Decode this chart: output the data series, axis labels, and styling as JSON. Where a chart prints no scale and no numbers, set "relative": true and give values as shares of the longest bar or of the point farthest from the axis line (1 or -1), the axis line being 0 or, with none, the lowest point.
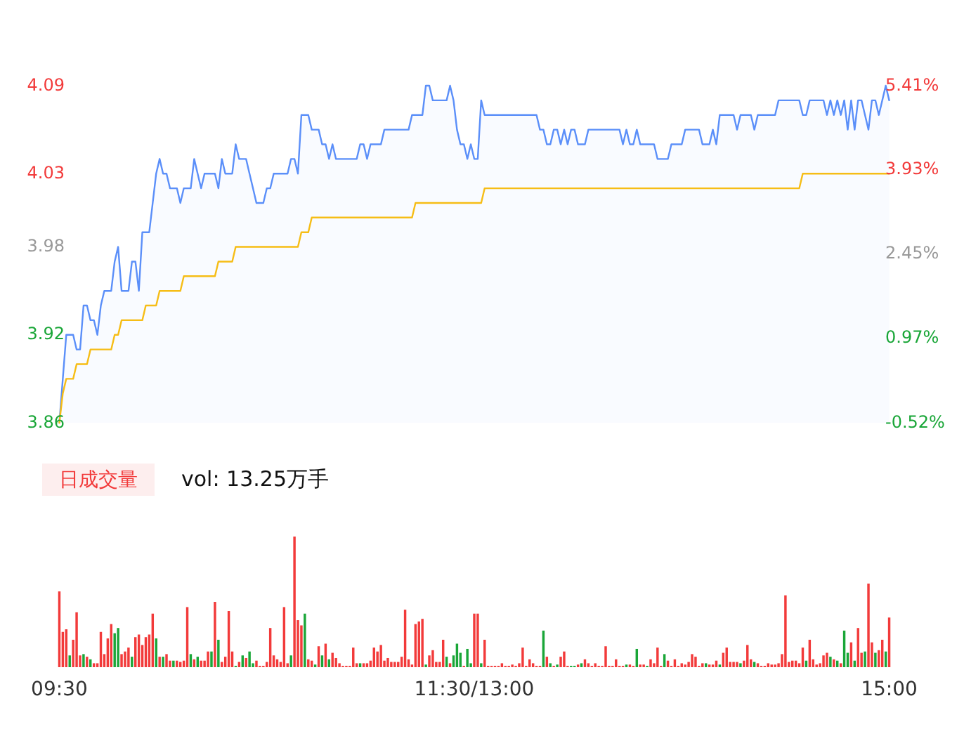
{
  "chart_data": [
    {
      "type": "area",
      "categories": [
        null,
        null,
        null,
        null,
        null,
        null,
        null,
        null,
        null,
        null,
        null,
        null,
        null,
        null,
        null,
        null,
        null,
        null,
        null,
        null,
        null,
        null,
        null,
        null,
        null,
        null,
        null,
        null,
        null,
        null,
        null,
        null,
        null,
        null,
        null,
        null,
        null,
        null,
        null,
        null,
        null,
        null,
        null,
        null,
        null,
        null,
        null,
        null,
        null,
        null,
        null,
        null,
        null,
        null,
        null,
        null,
        null,
        null,
        null,
        null,
        null,
        null,
        null,
        null,
        null,
        null,
        null,
        null,
        null,
        null,
        null,
        null,
        null,
        null,
        null,
        null,
        null,
        null,
        null,
        null,
        null,
        null,
        null,
        null,
        null,
        null,
        null,
        null,
        null,
        null,
        null,
        null,
        null,
        null,
        null,
        null,
        null,
        null,
        null,
        null,
        null,
        null,
        null,
        null,
        null,
        null,
        null,
        null,
        null,
        null,
        null,
        null,
        null,
        null,
        null,
        null,
        null,
        null,
        null,
        null,
        null,
        null,
        null,
        null,
        null,
        null,
        null,
        null,
        null,
        null,
        null,
        null,
        null,
        null,
        null,
        null,
        null,
        null,
        null,
        null,
        null,
        null,
        null,
        null,
        null,
        null,
        null,
        null,
        null,
        null,
        null,
        null,
        null,
        null,
        null,
        null,
        null,
        null,
        null,
        null,
        null,
        null,
        null,
        null,
        null,
        null,
        null,
        null,
        null,
        null,
        null,
        null,
        null,
        null,
        null,
        null,
        null,
        null,
        null,
        null,
        null,
        null,
        null,
        null,
        null,
        null,
        null,
        null,
        null,
        null,
        null,
        null,
        null,
        null,
        null,
        null,
        null,
        null,
        null,
        null,
        null,
        null,
        null,
        null,
        null,
        null,
        null,
        null,
        null,
        null,
        null,
        null,
        null,
        null,
        null,
        null,
        null,
        null,
        null,
        null,
        null,
        null,
        null,
        null,
        null,
        null,
        null,
        null,
        null,
        null,
        null,
        null,
        null,
        null,
        null,
        null,
        null,
        null,
        null,
        null,
        null
      ],
      "ylim": [
        3.86,
        4.09
      ],
      "yticks": [
        3.86,
        3.92,
        3.98,
        4.03,
        4.09
      ],
      "y2lim": [
        -0.52,
        5.41
      ],
      "y2ticks": [
        {
          "value": -0.52,
          "label": "-0.52%"
        },
        {
          "value": 0.97,
          "label": "0.97%"
        },
        {
          "value": 2.45,
          "label": "2.45%"
        },
        {
          "value": 3.93,
          "label": "3.93%"
        },
        {
          "value": 5.41,
          "label": "5.41%"
        }
      ],
      "tick_labels": "y",
      "series": [
        {
          "type": "area",
          "color": "#5b8ff9",
          "values": [
            3.86,
            3.89,
            3.92,
            3.92,
            3.92,
            3.91,
            3.91,
            3.94,
            3.94,
            3.93,
            3.93,
            3.92,
            3.94,
            3.95,
            3.95,
            3.95,
            3.97,
            3.98,
            3.95,
            3.95,
            3.95,
            3.97,
            3.97,
            3.95,
            3.99,
            3.99,
            3.99,
            4.01,
            4.03,
            4.04,
            4.03,
            4.03,
            4.02,
            4.02,
            4.02,
            4.01,
            4.02,
            4.02,
            4.02,
            4.04,
            4.03,
            4.02,
            4.03,
            4.03,
            4.03,
            4.03,
            4.02,
            4.04,
            4.03,
            4.03,
            4.03,
            4.05,
            4.04,
            4.04,
            4.04,
            4.03,
            4.02,
            4.01,
            4.01,
            4.01,
            4.02,
            4.02,
            4.03,
            4.03,
            4.03,
            4.03,
            4.03,
            4.04,
            4.04,
            4.03,
            4.07,
            4.07,
            4.07,
            4.06,
            4.06,
            4.06,
            4.05,
            4.05,
            4.04,
            4.05,
            4.04,
            4.04,
            4.04,
            4.04,
            4.04,
            4.04,
            4.04,
            4.05,
            4.05,
            4.04,
            4.05,
            4.05,
            4.05,
            4.05,
            4.06,
            4.06,
            4.06,
            4.06,
            4.06,
            4.06,
            4.06,
            4.06,
            4.07,
            4.07,
            4.07,
            4.07,
            4.09,
            4.09,
            4.08,
            4.08,
            4.08,
            4.08,
            4.08,
            4.09,
            4.08,
            4.06,
            4.05,
            4.05,
            4.04,
            4.05,
            4.04,
            4.04,
            4.08,
            4.07,
            4.07,
            4.07,
            4.07,
            4.07,
            4.07,
            4.07,
            4.07,
            4.07,
            4.07,
            4.07,
            4.07,
            4.07,
            4.07,
            4.07,
            4.07,
            4.06,
            4.06,
            4.05,
            4.05,
            4.06,
            4.06,
            4.05,
            4.06,
            4.05,
            4.06,
            4.06,
            4.05,
            4.05,
            4.05,
            4.06,
            4.06,
            4.06,
            4.06,
            4.06,
            4.06,
            4.06,
            4.06,
            4.06,
            4.06,
            4.05,
            4.06,
            4.05,
            4.05,
            4.06,
            4.05,
            4.05,
            4.05,
            4.05,
            4.05,
            4.04,
            4.04,
            4.04,
            4.04,
            4.05,
            4.05,
            4.05,
            4.05,
            4.06,
            4.06,
            4.06,
            4.06,
            4.06,
            4.05,
            4.05,
            4.05,
            4.06,
            4.05,
            4.07,
            4.07,
            4.07,
            4.07,
            4.07,
            4.06,
            4.07,
            4.07,
            4.07,
            4.07,
            4.06,
            4.07,
            4.07,
            4.07,
            4.07,
            4.07,
            4.07,
            4.08,
            4.08,
            4.08,
            4.08,
            4.08,
            4.08,
            4.08,
            4.07,
            4.07,
            4.08,
            4.08,
            4.08,
            4.08,
            4.08,
            4.07,
            4.08,
            4.07,
            4.08,
            4.07,
            4.08,
            4.06,
            4.08,
            4.06,
            4.08,
            4.08,
            4.07,
            4.06,
            4.08,
            4.08,
            4.07,
            4.08,
            4.09,
            4.08
          ]
        },
        {
          "type": "line",
          "color": "#f6bd16",
          "values": [
            3.86,
            3.88,
            3.89,
            3.89,
            3.89,
            3.9,
            3.9,
            3.9,
            3.9,
            3.91,
            3.91,
            3.91,
            3.91,
            3.91,
            3.91,
            3.91,
            3.92,
            3.92,
            3.93,
            3.93,
            3.93,
            3.93,
            3.93,
            3.93,
            3.93,
            3.94,
            3.94,
            3.94,
            3.94,
            3.95,
            3.95,
            3.95,
            3.95,
            3.95,
            3.95,
            3.95,
            3.96,
            3.96,
            3.96,
            3.96,
            3.96,
            3.96,
            3.96,
            3.96,
            3.96,
            3.96,
            3.97,
            3.97,
            3.97,
            3.97,
            3.97,
            3.98,
            3.98,
            3.98,
            3.98,
            3.98,
            3.98,
            3.98,
            3.98,
            3.98,
            3.98,
            3.98,
            3.98,
            3.98,
            3.98,
            3.98,
            3.98,
            3.98,
            3.98,
            3.98,
            3.99,
            3.99,
            3.99,
            4.0,
            4.0,
            4.0,
            4.0,
            4.0,
            4.0,
            4.0,
            4.0,
            4.0,
            4.0,
            4.0,
            4.0,
            4.0,
            4.0,
            4.0,
            4.0,
            4.0,
            4.0,
            4.0,
            4.0,
            4.0,
            4.0,
            4.0,
            4.0,
            4.0,
            4.0,
            4.0,
            4.0,
            4.0,
            4.0,
            4.01,
            4.01,
            4.01,
            4.01,
            4.01,
            4.01,
            4.01,
            4.01,
            4.01,
            4.01,
            4.01,
            4.01,
            4.01,
            4.01,
            4.01,
            4.01,
            4.01,
            4.01,
            4.01,
            4.01,
            4.02,
            4.02,
            4.02,
            4.02,
            4.02,
            4.02,
            4.02,
            4.02,
            4.02,
            4.02,
            4.02,
            4.02,
            4.02,
            4.02,
            4.02,
            4.02,
            4.02,
            4.02,
            4.02,
            4.02,
            4.02,
            4.02,
            4.02,
            4.02,
            4.02,
            4.02,
            4.02,
            4.02,
            4.02,
            4.02,
            4.02,
            4.02,
            4.02,
            4.02,
            4.02,
            4.02,
            4.02,
            4.02,
            4.02,
            4.02,
            4.02,
            4.02,
            4.02,
            4.02,
            4.02,
            4.02,
            4.02,
            4.02,
            4.02,
            4.02,
            4.02,
            4.02,
            4.02,
            4.02,
            4.02,
            4.02,
            4.02,
            4.02,
            4.02,
            4.02,
            4.02,
            4.02,
            4.02,
            4.02,
            4.02,
            4.02,
            4.02,
            4.02,
            4.02,
            4.02,
            4.02,
            4.02,
            4.02,
            4.02,
            4.02,
            4.02,
            4.02,
            4.02,
            4.02,
            4.02,
            4.02,
            4.02,
            4.02,
            4.02,
            4.02,
            4.02,
            4.02,
            4.02,
            4.02,
            4.02,
            4.02,
            4.02,
            4.03,
            4.03,
            4.03,
            4.03,
            4.03,
            4.03,
            4.03,
            4.03,
            4.03,
            4.03,
            4.03,
            4.03,
            4.03,
            4.03,
            4.03,
            4.03,
            4.03,
            4.03,
            4.03,
            4.03,
            4.03,
            4.03,
            4.03,
            4.03,
            4.03,
            4.03
          ]
        }
      ]
    },
    {
      "type": "bar",
      "title": "日成交量",
      "subtitle": "vol: 13.25万手",
      "relative": true,
      "tick_labels": "x",
      "categories": [
        "09:30",
        null,
        null,
        null,
        null,
        null,
        null,
        null,
        null,
        null,
        null,
        null,
        null,
        null,
        null,
        null,
        null,
        null,
        null,
        null,
        null,
        null,
        null,
        null,
        null,
        null,
        null,
        null,
        null,
        null,
        null,
        null,
        null,
        null,
        null,
        null,
        null,
        null,
        null,
        null,
        null,
        null,
        null,
        null,
        null,
        null,
        null,
        null,
        null,
        null,
        null,
        null,
        null,
        null,
        null,
        null,
        null,
        null,
        null,
        null,
        null,
        null,
        null,
        null,
        null,
        null,
        null,
        null,
        null,
        null,
        null,
        null,
        null,
        null,
        null,
        null,
        null,
        null,
        null,
        null,
        null,
        null,
        null,
        null,
        null,
        null,
        null,
        null,
        null,
        null,
        null,
        null,
        null,
        null,
        null,
        null,
        null,
        null,
        null,
        null,
        null,
        null,
        null,
        null,
        null,
        null,
        null,
        null,
        null,
        null,
        null,
        null,
        null,
        null,
        null,
        null,
        null,
        null,
        null,
        null,
        "11:30/13:00",
        null,
        null,
        null,
        null,
        null,
        null,
        null,
        null,
        null,
        null,
        null,
        null,
        null,
        null,
        null,
        null,
        null,
        null,
        null,
        null,
        null,
        null,
        null,
        null,
        null,
        null,
        null,
        null,
        null,
        null,
        null,
        null,
        null,
        null,
        null,
        null,
        null,
        null,
        null,
        null,
        null,
        null,
        null,
        null,
        null,
        null,
        null,
        null,
        null,
        null,
        null,
        null,
        null,
        null,
        null,
        null,
        null,
        null,
        null,
        null,
        null,
        null,
        null,
        null,
        null,
        null,
        null,
        null,
        null,
        null,
        null,
        null,
        null,
        null,
        null,
        null,
        null,
        null,
        null,
        null,
        null,
        null,
        null,
        null,
        null,
        null,
        null,
        null,
        null,
        null,
        null,
        null,
        null,
        null,
        null,
        null,
        null,
        null,
        null,
        null,
        null,
        null,
        null,
        null,
        null,
        null,
        null,
        null,
        null,
        null,
        null,
        null,
        null,
        null,
        null,
        null,
        null,
        null,
        null,
        "15:00"
      ],
      "values": [
        0.58,
        0.27,
        0.29,
        0.09,
        0.21,
        0.42,
        0.09,
        0.1,
        0.08,
        0.06,
        0.03,
        0.03,
        0.27,
        0.1,
        0.22,
        0.33,
        0.26,
        0.3,
        0.1,
        0.12,
        0.15,
        0.08,
        0.23,
        0.25,
        0.17,
        0.23,
        0.25,
        0.41,
        0.22,
        0.08,
        0.08,
        0.1,
        0.05,
        0.05,
        0.05,
        0.04,
        0.05,
        0.46,
        0.1,
        0.06,
        0.08,
        0.05,
        0.05,
        0.12,
        0.12,
        0.5,
        0.21,
        0.04,
        0.08,
        0.43,
        0.12,
        0.01,
        0.04,
        0.09,
        0.07,
        0.12,
        0.03,
        0.05,
        0.01,
        0.01,
        0.04,
        0.3,
        0.09,
        0.06,
        0.04,
        0.46,
        0.03,
        0.09,
        1,
        0.36,
        0.32,
        0.41,
        0.06,
        0.05,
        0.02,
        0.16,
        0.09,
        0.18,
        0.06,
        0.11,
        0.07,
        0.03,
        0.01,
        0.01,
        0.01,
        0.15,
        0.03,
        0.03,
        0.03,
        0.03,
        0.05,
        0.15,
        0.12,
        0.17,
        0.05,
        0.07,
        0.04,
        0.04,
        0.04,
        0.08,
        0.44,
        0.06,
        0.02,
        0.33,
        0.35,
        0.37,
        0.02,
        0.09,
        0.13,
        0.04,
        0.04,
        0.21,
        0.08,
        0.03,
        0.09,
        0.18,
        0.11,
        0.01,
        0.14,
        0.03,
        0.41,
        0.41,
        0.03,
        0.21,
        0.01,
        0.01,
        0.01,
        0.01,
        0.03,
        0.01,
        0.01,
        0.02,
        0.01,
        0.03,
        0.15,
        0.01,
        0.06,
        0.03,
        0.01,
        0.01,
        0.28,
        0.08,
        0.03,
        0.01,
        0.02,
        0.08,
        0.12,
        0.01,
        0.01,
        0.01,
        0.02,
        0.03,
        0.06,
        0.03,
        0.01,
        0.03,
        0.01,
        0.01,
        0.16,
        0.01,
        0.01,
        0.06,
        0.01,
        0.01,
        0.02,
        0.02,
        0.01,
        0.14,
        0.02,
        0.02,
        0.01,
        0.06,
        0.03,
        0.15,
        0.01,
        0.1,
        0.05,
        0.01,
        0.06,
        0.01,
        0.03,
        0.02,
        0.04,
        0.1,
        0.08,
        0.01,
        0.03,
        0.03,
        0.02,
        0.02,
        0.05,
        0.02,
        0.11,
        0.15,
        0.04,
        0.04,
        0.04,
        0.03,
        0.05,
        0.17,
        0.06,
        0.04,
        0.03,
        0.01,
        0.01,
        0.03,
        0.02,
        0.02,
        0.03,
        0.1,
        0.55,
        0.04,
        0.05,
        0.05,
        0.03,
        0.15,
        0.05,
        0.21,
        0.06,
        0.02,
        0.03,
        0.09,
        0.11,
        0.08,
        0.06,
        0.05,
        0.03,
        0.28,
        0.11,
        0.19,
        0.05,
        0.3,
        0.11,
        0.12,
        0.64,
        0.19,
        0.11,
        0.13,
        0.21,
        0.12,
        0.38
      ],
      "colors": [
        "#f23a3a",
        "#f23a3a",
        "#f23a3a",
        "#1aa638",
        "#f23a3a",
        "#f23a3a",
        "#f23a3a",
        "#1aa638",
        "#f23a3a",
        "#1aa638",
        "#f23a3a",
        "#f23a3a",
        "#f23a3a",
        "#f23a3a",
        "#f23a3a",
        "#f23a3a",
        "#1aa638",
        "#1aa638",
        "#f23a3a",
        "#f23a3a",
        "#f23a3a",
        "#1aa638",
        "#f23a3a",
        "#f23a3a",
        "#f23a3a",
        "#f23a3a",
        "#f23a3a",
        "#f23a3a",
        "#1aa638",
        "#f23a3a",
        "#1aa638",
        "#f23a3a",
        "#f23a3a",
        "#1aa638",
        "#f23a3a",
        "#f23a3a",
        "#f23a3a",
        "#f23a3a",
        "#1aa638",
        "#f23a3a",
        "#1aa638",
        "#f23a3a",
        "#f23a3a",
        "#f23a3a",
        "#1aa638",
        "#f23a3a",
        "#1aa638",
        "#f23a3a",
        "#f23a3a",
        "#f23a3a",
        "#f23a3a",
        "#1aa638",
        "#f23a3a",
        "#1aa638",
        "#f23a3a",
        "#1aa638",
        "#1aa638",
        "#f23a3a",
        "#f23a3a",
        "#f23a3a",
        "#f23a3a",
        "#f23a3a",
        "#f23a3a",
        "#f23a3a",
        "#f23a3a",
        "#f23a3a",
        "#f23a3a",
        "#1aa638",
        "#f23a3a",
        "#f23a3a",
        "#f23a3a",
        "#1aa638",
        "#f23a3a",
        "#f23a3a",
        "#1aa638",
        "#f23a3a",
        "#1aa638",
        "#f23a3a",
        "#1aa638",
        "#f23a3a",
        "#f23a3a",
        "#f23a3a",
        "#f23a3a",
        "#f23a3a",
        "#f23a3a",
        "#f23a3a",
        "#f23a3a",
        "#1aa638",
        "#f23a3a",
        "#f23a3a",
        "#f23a3a",
        "#f23a3a",
        "#f23a3a",
        "#f23a3a",
        "#f23a3a",
        "#f23a3a",
        "#f23a3a",
        "#f23a3a",
        "#f23a3a",
        "#f23a3a",
        "#f23a3a",
        "#f23a3a",
        "#f23a3a",
        "#f23a3a",
        "#f23a3a",
        "#f23a3a",
        "#1aa638",
        "#f23a3a",
        "#f23a3a",
        "#f23a3a",
        "#f23a3a",
        "#f23a3a",
        "#1aa638",
        "#f23a3a",
        "#1aa638",
        "#1aa638",
        "#1aa638",
        "#f23a3a",
        "#1aa638",
        "#1aa638",
        "#f23a3a",
        "#f23a3a",
        "#1aa638",
        "#f23a3a",
        "#f23a3a",
        "#f23a3a",
        "#f23a3a",
        "#f23a3a",
        "#f23a3a",
        "#f23a3a",
        "#f23a3a",
        "#f23a3a",
        "#f23a3a",
        "#f23a3a",
        "#f23a3a",
        "#f23a3a",
        "#f23a3a",
        "#f23a3a",
        "#f23a3a",
        "#f23a3a",
        "#1aa638",
        "#f23a3a",
        "#1aa638",
        "#f23a3a",
        "#1aa638",
        "#f23a3a",
        "#f23a3a",
        "#f23a3a",
        "#1aa638",
        "#1aa638",
        "#f23a3a",
        "#1aa638",
        "#f23a3a",
        "#f23a3a",
        "#f23a3a",
        "#f23a3a",
        "#f23a3a",
        "#f23a3a",
        "#f23a3a",
        "#f23a3a",
        "#f23a3a",
        "#f23a3a",
        "#f23a3a",
        "#f23a3a",
        "#1aa638",
        "#f23a3a",
        "#f23a3a",
        "#1aa638",
        "#f23a3a",
        "#f23a3a",
        "#1aa638",
        "#f23a3a",
        "#f23a3a",
        "#f23a3a",
        "#f23a3a",
        "#1aa638",
        "#f23a3a",
        "#f23a3a",
        "#f23a3a",
        "#f23a3a",
        "#f23a3a",
        "#f23a3a",
        "#f23a3a",
        "#f23a3a",
        "#f23a3a",
        "#f23a3a",
        "#f23a3a",
        "#1aa638",
        "#f23a3a",
        "#f23a3a",
        "#f23a3a",
        "#1aa638",
        "#f23a3a",
        "#f23a3a",
        "#f23a3a",
        "#f23a3a",
        "#f23a3a",
        "#1aa638",
        "#f23a3a",
        "#f23a3a",
        "#f23a3a",
        "#1aa638",
        "#f23a3a",
        "#f23a3a",
        "#f23a3a",
        "#f23a3a",
        "#f23a3a",
        "#f23a3a",
        "#f23a3a",
        "#f23a3a",
        "#f23a3a",
        "#f23a3a",
        "#f23a3a",
        "#f23a3a",
        "#f23a3a",
        "#f23a3a",
        "#1aa638",
        "#f23a3a",
        "#f23a3a",
        "#f23a3a",
        "#f23a3a",
        "#f23a3a",
        "#f23a3a",
        "#1aa638",
        "#f23a3a",
        "#1aa638",
        "#f23a3a",
        "#1aa638",
        "#1aa638",
        "#f23a3a",
        "#1aa638",
        "#f23a3a",
        "#f23a3a",
        "#1aa638",
        "#f23a3a",
        "#f23a3a",
        "#1aa638",
        "#f23a3a",
        "#f23a3a",
        "#1aa638",
        "#f23a3a"
      ]
    }
  ]
}
